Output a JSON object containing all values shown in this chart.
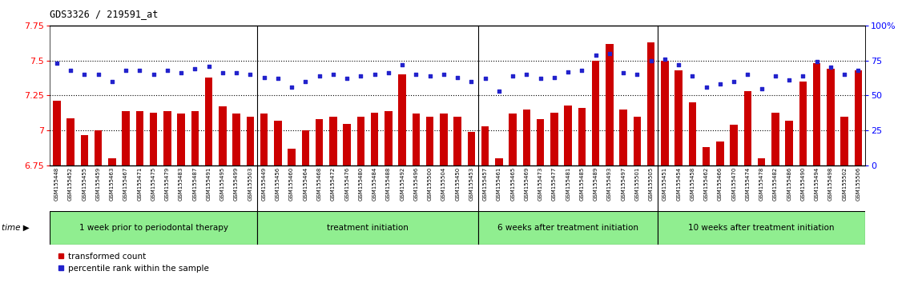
{
  "title": "GDS3326 / 219591_at",
  "xlabels": [
    "GSM155448",
    "GSM155452",
    "GSM155455",
    "GSM155459",
    "GSM155463",
    "GSM155467",
    "GSM155471",
    "GSM155475",
    "GSM155479",
    "GSM155483",
    "GSM155487",
    "GSM155491",
    "GSM155495",
    "GSM155499",
    "GSM155503",
    "GSM155449",
    "GSM155456",
    "GSM155460",
    "GSM155464",
    "GSM155468",
    "GSM155472",
    "GSM155476",
    "GSM155480",
    "GSM155484",
    "GSM155488",
    "GSM155492",
    "GSM155496",
    "GSM155500",
    "GSM155504",
    "GSM155450",
    "GSM155453",
    "GSM155457",
    "GSM155461",
    "GSM155465",
    "GSM155469",
    "GSM155473",
    "GSM155477",
    "GSM155481",
    "GSM155485",
    "GSM155489",
    "GSM155493",
    "GSM155497",
    "GSM155501",
    "GSM155505",
    "GSM155451",
    "GSM155454",
    "GSM155458",
    "GSM155462",
    "GSM155466",
    "GSM155470",
    "GSM155474",
    "GSM155478",
    "GSM155482",
    "GSM155486",
    "GSM155490",
    "GSM155494",
    "GSM155498",
    "GSM155502",
    "GSM155506"
  ],
  "bar_values": [
    7.21,
    7.09,
    6.97,
    7.0,
    6.8,
    7.14,
    7.14,
    7.13,
    7.14,
    7.12,
    7.14,
    7.38,
    7.17,
    7.12,
    7.1,
    7.12,
    7.07,
    6.87,
    7.0,
    7.08,
    7.1,
    7.05,
    7.1,
    7.13,
    7.14,
    7.4,
    7.12,
    7.1,
    7.12,
    7.1,
    6.99,
    7.03,
    6.8,
    7.12,
    7.15,
    7.08,
    7.13,
    7.18,
    7.16,
    7.5,
    7.62,
    7.15,
    7.1,
    7.63,
    7.5,
    7.43,
    7.2,
    6.88,
    6.92,
    7.04,
    7.28,
    6.8,
    7.13,
    7.07,
    7.35,
    7.48,
    7.44,
    7.1,
    7.43
  ],
  "dot_values": [
    73,
    68,
    65,
    65,
    60,
    68,
    68,
    65,
    68,
    66,
    69,
    71,
    66,
    66,
    65,
    63,
    62,
    56,
    60,
    64,
    65,
    62,
    64,
    65,
    66,
    72,
    65,
    64,
    65,
    63,
    60,
    62,
    53,
    64,
    65,
    62,
    63,
    67,
    68,
    79,
    80,
    66,
    65,
    75,
    76,
    72,
    64,
    56,
    58,
    60,
    65,
    55,
    64,
    61,
    64,
    74,
    70,
    65,
    68
  ],
  "groups": [
    {
      "label": "1 week prior to periodontal therapy",
      "start": 0,
      "end": 15
    },
    {
      "label": "treatment initiation",
      "start": 15,
      "end": 31
    },
    {
      "label": "6 weeks after treatment initiation",
      "start": 31,
      "end": 44
    },
    {
      "label": "10 weeks after treatment initiation",
      "start": 44,
      "end": 59
    }
  ],
  "ylim_left": [
    6.75,
    7.75
  ],
  "ylim_right": [
    0,
    100
  ],
  "yticks_left": [
    6.75,
    7.0,
    7.25,
    7.5,
    7.75
  ],
  "ytick_labels_left": [
    "6.75",
    "7",
    "7.25",
    "7.5",
    "7.75"
  ],
  "yticks_right": [
    0,
    25,
    50,
    75,
    100
  ],
  "ytick_labels_right": [
    "0",
    "25",
    "50",
    "75",
    "100%"
  ],
  "bar_color": "#cc0000",
  "dot_color": "#2222cc",
  "bg_color": "#ffffff",
  "xtick_bg_color": "#d4d4d4",
  "group_color": "#90ee90",
  "group_border_color": "#000000"
}
